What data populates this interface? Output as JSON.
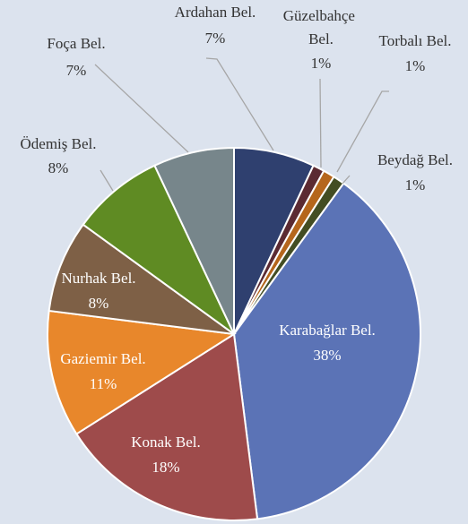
{
  "chart_data": {
    "type": "pie",
    "categories": [
      "Ardahan Bel.",
      "Güzelbahçe Bel.",
      "Torbalı Bel.",
      "Beydağ Bel.",
      "Karabağlar Bel.",
      "Konak Bel.",
      "Gaziemir Bel.",
      "Nurhak Bel.",
      "Ödemiş Bel.",
      "Foça Bel."
    ],
    "values": [
      7,
      1,
      1,
      1,
      38,
      18,
      11,
      8,
      8,
      7
    ],
    "value_labels": [
      "7%",
      "1%",
      "1%",
      "1%",
      "38%",
      "18%",
      "11%",
      "8%",
      "8%",
      "7%"
    ],
    "colors": [
      "#2f406f",
      "#5b2a32",
      "#b5661c",
      "#434d23",
      "#5b73b6",
      "#9e4b4b",
      "#e8872b",
      "#7e6046",
      "#5f8b23",
      "#77868b"
    ]
  }
}
